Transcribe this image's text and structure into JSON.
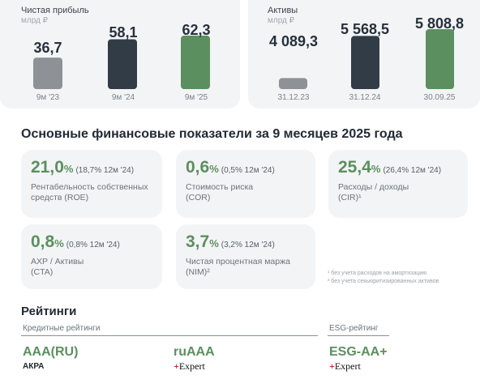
{
  "profit_panel": {
    "title": "Чистая прибыль",
    "unit": "млрд ₽",
    "bars": [
      {
        "label": "9м '23",
        "value": "36,7"
      },
      {
        "label": "9м '24",
        "value": "58,1"
      },
      {
        "label": "9м '25",
        "value": "62,3"
      }
    ]
  },
  "assets_panel": {
    "title": "Активы",
    "unit": "млрд ₽",
    "bars": [
      {
        "label": "31.12.23",
        "value": "4 089,3"
      },
      {
        "label": "31.12.24",
        "value": "5 568,5"
      },
      {
        "label": "30.09.25",
        "value": "5 808,8"
      }
    ]
  },
  "chart_data": [
    {
      "type": "bar",
      "title": "Чистая прибыль",
      "ylabel": "млрд ₽",
      "categories": [
        "9м '23",
        "9м '24",
        "9м '25"
      ],
      "values": [
        36.7,
        58.1,
        62.3
      ]
    },
    {
      "type": "bar",
      "title": "Активы",
      "ylabel": "млрд ₽",
      "categories": [
        "31.12.23",
        "31.12.24",
        "30.09.25"
      ],
      "values": [
        4089.3,
        5568.5,
        5808.8
      ]
    }
  ],
  "section_title": "Основные финансовые показатели за 9 месяцев 2025 года",
  "kpis": [
    {
      "value": "21,0",
      "pct": "%",
      "prev": "(18,7% 12м '24)",
      "label": "Рентабельность собственных средств (ROE)"
    },
    {
      "value": "0,6",
      "pct": "%",
      "prev": "(0,5% 12м '24)",
      "label": "Стоимость риска (COR)"
    },
    {
      "value": "25,4",
      "pct": "%",
      "prev": "(26,4% 12м '24)",
      "label": "Расходы / доходы (CIR)¹"
    },
    {
      "value": "0,8",
      "pct": "%",
      "prev": "(0,8% 12м '24)",
      "label": "АХР / Активы (CTA)"
    },
    {
      "value": "3,7",
      "pct": "%",
      "prev": "(3,2% 12м '24)",
      "label": "Чистая процентная маржа (NIM)²"
    }
  ],
  "footnotes": [
    "¹ без учета расходов на амортизацию",
    "² без учета секьюритизированных активов"
  ],
  "ratings": {
    "title": "Рейтинги",
    "credit_heading": "Кредитные рейтинги",
    "esg_heading": "ESG-рейтинг",
    "items": [
      {
        "rating": "AAA(RU)",
        "agency": "АКРА"
      },
      {
        "rating": "ruAAA",
        "agency_mark": "+",
        "agency": "Expert"
      },
      {
        "rating": "ESG-AA+",
        "agency_mark": "+",
        "agency": "Expert"
      }
    ]
  },
  "colors": {
    "bar_grey": "#8e9296",
    "bar_dark": "#323c46",
    "bar_green": "#5c8f5f",
    "accent_green": "#5c8f5f",
    "panel_bg": "#f3f4f5"
  }
}
